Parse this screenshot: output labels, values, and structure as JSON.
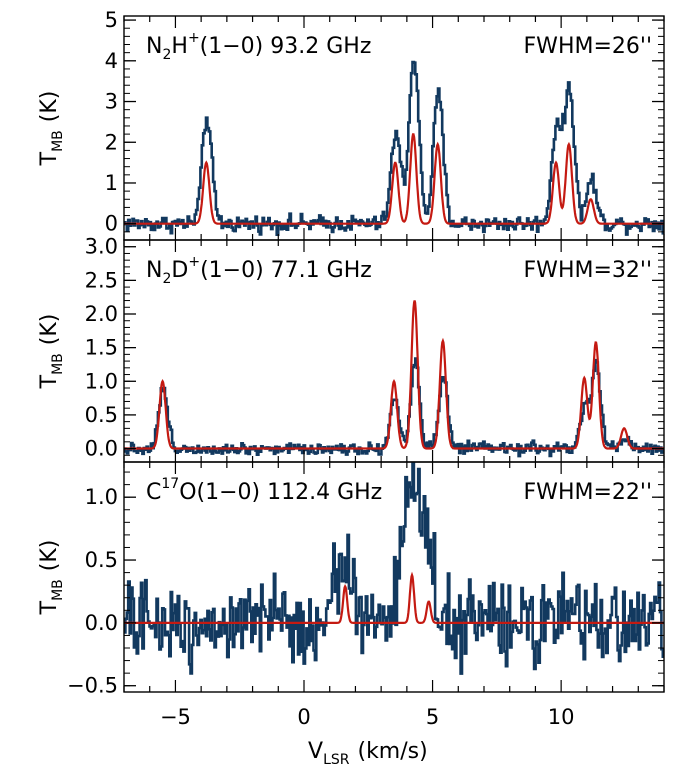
{
  "chart_data": [
    {
      "type": "line",
      "panel": "top",
      "label": {
        "pre": "N",
        "sub1": "2",
        "mid": "H",
        "sup": "+",
        "post": "(1−0)  93.2  GHz"
      },
      "fwhm": "FWHM=26''",
      "ylabel": {
        "main": "T",
        "sub": "MB",
        "unit": "(K)"
      },
      "ylim": [
        -0.4,
        5.1
      ],
      "yticks": [
        0,
        1,
        2,
        3,
        4,
        5
      ],
      "ytick_labels": [
        "0",
        "1",
        "2",
        "3",
        "4",
        "5"
      ],
      "sigma_obs": 0.19,
      "sigma_model": 0.12,
      "noise": 0.1,
      "observed_lines": [
        {
          "v": -3.8,
          "amp": 2.6
        },
        {
          "v": 3.55,
          "amp": 2.2
        },
        {
          "v": 4.25,
          "amp": 4.1
        },
        {
          "v": 5.2,
          "amp": 3.2
        },
        {
          "v": 9.8,
          "amp": 2.4
        },
        {
          "v": 10.3,
          "amp": 3.3
        },
        {
          "v": 11.15,
          "amp": 1.1
        }
      ],
      "model_lines": [
        {
          "v": -3.8,
          "amp": 1.5
        },
        {
          "v": 3.55,
          "amp": 1.5
        },
        {
          "v": 4.25,
          "amp": 2.2
        },
        {
          "v": 5.2,
          "amp": 1.95
        },
        {
          "v": 9.8,
          "amp": 1.5
        },
        {
          "v": 10.3,
          "amp": 1.95
        },
        {
          "v": 11.15,
          "amp": 0.6
        }
      ]
    },
    {
      "type": "line",
      "panel": "middle",
      "label": {
        "pre": "N",
        "sub1": "2",
        "mid": "D",
        "sup": "+",
        "post": "(1−0)  77.1  GHz"
      },
      "fwhm": "FWHM=32''",
      "ylabel": {
        "main": "T",
        "sub": "MB",
        "unit": "(K)"
      },
      "ylim": [
        -0.2,
        3.1
      ],
      "yticks": [
        0.0,
        0.5,
        1.0,
        1.5,
        2.0,
        2.5,
        3.0
      ],
      "ytick_labels": [
        "0.0",
        "0.5",
        "1.0",
        "1.5",
        "2.0",
        "2.5",
        "3.0"
      ],
      "sigma_obs": 0.17,
      "sigma_model": 0.12,
      "noise": 0.045,
      "observed_lines": [
        {
          "v": -5.5,
          "amp": 0.9
        },
        {
          "v": 3.5,
          "amp": 0.75
        },
        {
          "v": 4.3,
          "amp": 1.3
        },
        {
          "v": 5.4,
          "amp": 1.05
        },
        {
          "v": 10.9,
          "amp": 0.6
        },
        {
          "v": 11.35,
          "amp": 1.25
        },
        {
          "v": 12.45,
          "amp": 0.15
        }
      ],
      "model_lines": [
        {
          "v": -5.5,
          "amp": 1.0
        },
        {
          "v": 3.5,
          "amp": 1.0
        },
        {
          "v": 4.3,
          "amp": 2.2
        },
        {
          "v": 5.4,
          "amp": 1.6
        },
        {
          "v": 10.9,
          "amp": 1.05
        },
        {
          "v": 11.35,
          "amp": 1.58
        },
        {
          "v": 12.45,
          "amp": 0.3
        }
      ]
    },
    {
      "type": "line",
      "panel": "bottom",
      "label": {
        "pre": "C",
        "sup": "17",
        "post": "O(1−0)  112.4  GHz"
      },
      "fwhm": "FWHM=22''",
      "ylabel": {
        "main": "T",
        "sub": "MB",
        "unit": "(K)"
      },
      "ylim": [
        -0.55,
        1.28
      ],
      "yticks": [
        -0.5,
        0.0,
        0.5,
        1.0
      ],
      "ytick_labels": [
        "−0.5",
        "0.0",
        "0.5",
        "1.0"
      ],
      "sigma_obs": 0.3,
      "sigma_model": 0.08,
      "noise": 0.16,
      "observed_lines": [
        {
          "v": 1.5,
          "amp": 0.55
        },
        {
          "v": 3.9,
          "amp": 0.55
        },
        {
          "v": 4.35,
          "amp": 0.85
        },
        {
          "v": 4.85,
          "amp": 0.35
        }
      ],
      "model_lines": [
        {
          "v": 1.6,
          "amp": 0.29
        },
        {
          "v": 4.2,
          "amp": 0.38
        },
        {
          "v": 4.85,
          "amp": 0.17
        }
      ]
    }
  ],
  "x_axis": {
    "xlim": [
      -7,
      14
    ],
    "xticks": [
      -5,
      0,
      5,
      10
    ],
    "xtick_labels": [
      "−5",
      "0",
      "5",
      "10"
    ],
    "minor_step": 1,
    "xlabel": {
      "main": "V",
      "sub": "LSR",
      "unit": "(km/s)"
    }
  },
  "colors": {
    "observed": "#12395f",
    "model": "#c41a12",
    "axes": "#000000"
  }
}
